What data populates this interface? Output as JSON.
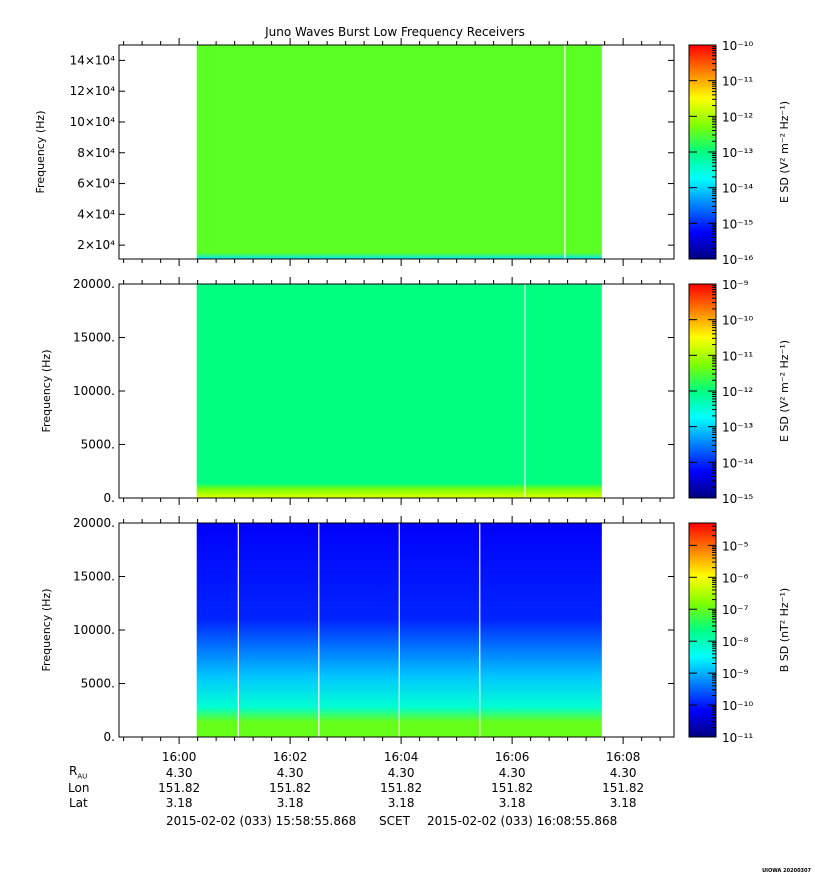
{
  "title": "Juno Waves Burst Low Frequency Receivers",
  "colors": {
    "cmap": [
      "#00007f",
      "#0000ff",
      "#0080ff",
      "#00ffff",
      "#00ff80",
      "#80ff00",
      "#ffff00",
      "#ff8000",
      "#ff0000"
    ],
    "gap": "#ffffff"
  },
  "chart_data": [
    {
      "type": "heatmap",
      "ylabel": "Frequency (Hz)",
      "ylim": [
        11000,
        150000
      ],
      "yticks": [
        {
          "value": 20000,
          "label": "2×10⁴"
        },
        {
          "value": 40000,
          "label": "4×10⁴"
        },
        {
          "value": 60000,
          "label": "6×10⁴"
        },
        {
          "value": 80000,
          "label": "8×10⁴"
        },
        {
          "value": 100000,
          "label": "10×10⁴"
        },
        {
          "value": 120000,
          "label": "12×10⁴"
        },
        {
          "value": 140000,
          "label": "14×10⁴"
        }
      ],
      "data_time_range": [
        "16:00:19",
        "16:07:37"
      ],
      "gaps": [
        "16:06:57"
      ],
      "colorbar": {
        "label": "E SD (V² m⁻² Hz⁻¹)",
        "scale": "log",
        "range_exp": [
          -16,
          -10
        ],
        "ticks": [
          "10⁻¹⁰",
          "10⁻¹¹",
          "10⁻¹²",
          "10⁻¹³",
          "10⁻¹⁴",
          "10⁻¹⁵",
          "10⁻¹⁶"
        ]
      },
      "intensity_profile": {
        "background": 0.59,
        "low_freq_edge": 0.35
      }
    },
    {
      "type": "heatmap",
      "ylabel": "Frequency (Hz)",
      "ylim": [
        0,
        20000
      ],
      "yticks": [
        {
          "value": 0,
          "label": "0."
        },
        {
          "value": 5000,
          "label": "5000."
        },
        {
          "value": 10000,
          "label": "10000."
        },
        {
          "value": 15000,
          "label": "15000."
        },
        {
          "value": 20000,
          "label": "20000."
        }
      ],
      "data_time_range": [
        "16:00:19",
        "16:07:37"
      ],
      "gaps": [
        "16:06:14"
      ],
      "colorbar": {
        "label": "E SD (V² m⁻² Hz⁻¹)",
        "scale": "log",
        "range_exp": [
          -15,
          -9
        ],
        "ticks": [
          "10⁻⁹",
          "10⁻¹⁰",
          "10⁻¹¹",
          "10⁻¹²",
          "10⁻¹³",
          "10⁻¹⁴",
          "10⁻¹⁵"
        ]
      },
      "intensity_profile": {
        "background": 0.5,
        "low_freq_edge": 0.72
      }
    },
    {
      "type": "heatmap",
      "ylabel": "Frequency (Hz)",
      "ylim": [
        0,
        20000
      ],
      "yticks": [
        {
          "value": 0,
          "label": "0."
        },
        {
          "value": 5000,
          "label": "5000."
        },
        {
          "value": 10000,
          "label": "10000."
        },
        {
          "value": 15000,
          "label": "15000."
        },
        {
          "value": 20000,
          "label": "20000."
        }
      ],
      "data_time_range": [
        "16:00:19",
        "16:07:37"
      ],
      "gaps": [
        "16:01:04",
        "16:02:31",
        "16:03:58",
        "16:05:25"
      ],
      "colorbar": {
        "label": "B SD (nT² Hz⁻¹)",
        "scale": "log",
        "range_exp": [
          -11,
          -4.3
        ],
        "ticks": [
          "10⁻⁵",
          "10⁻⁶",
          "10⁻⁷",
          "10⁻⁸",
          "10⁻⁹",
          "10⁻¹⁰",
          "10⁻¹¹"
        ]
      },
      "intensity_profile": {
        "background": 0.12,
        "low_freq_edge": 0.6
      }
    }
  ],
  "x_axis": {
    "range": [
      "15:58:55",
      "16:08:55"
    ],
    "tick_labels": [
      "16:00",
      "16:02",
      "16:04",
      "16:06",
      "16:08"
    ],
    "tick_times": [
      "16:00:00",
      "16:02:00",
      "16:04:00",
      "16:06:00",
      "16:08:00"
    ]
  },
  "ephemeris": {
    "labels": {
      "rau": "R",
      "rau_sub": "AU",
      "lon": "Lon",
      "lat": "Lat"
    },
    "rau": [
      "4.30",
      "4.30",
      "4.30",
      "4.30",
      "4.30"
    ],
    "lon": [
      "151.82",
      "151.82",
      "151.82",
      "151.82",
      "151.82"
    ],
    "lat": [
      "3.18",
      "3.18",
      "3.18",
      "3.18",
      "3.18"
    ]
  },
  "footer": {
    "start": "2015-02-02 (033) 15:58:55.868",
    "mid": "SCET",
    "end": "2015-02-02 (033) 16:08:55.868"
  },
  "stamp": "UIOWA 20200307"
}
